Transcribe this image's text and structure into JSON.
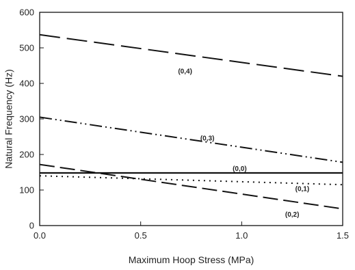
{
  "chart_data": {
    "type": "line",
    "title": "",
    "xlabel": "Maximum Hoop Stress (MPa)",
    "ylabel": "Natural Frequency (Hz)",
    "xlim": [
      0,
      1.5
    ],
    "ylim": [
      0,
      600
    ],
    "x_ticks": [
      "0.0",
      "0.5",
      "1.0",
      "1.5"
    ],
    "y_ticks": [
      "0",
      "100",
      "200",
      "300",
      "400",
      "500",
      "600"
    ],
    "grid": false,
    "legend": "none",
    "series": [
      {
        "label": "(0,4)",
        "style": "long-dash",
        "x": [
          0,
          1.5
        ],
        "y": [
          537,
          420
        ]
      },
      {
        "label": "(0,3)",
        "style": "dash-dot-dot",
        "x": [
          0,
          1.5
        ],
        "y": [
          305,
          178
        ]
      },
      {
        "label": "(0,0)",
        "style": "solid",
        "x": [
          0,
          1.5
        ],
        "y": [
          148,
          148
        ]
      },
      {
        "label": "(0,1)",
        "style": "dotted",
        "x": [
          0,
          1.5
        ],
        "y": [
          140,
          115
        ]
      },
      {
        "label": "(0,2)",
        "style": "medium-dash",
        "x": [
          0,
          1.5
        ],
        "y": [
          172,
          47
        ]
      }
    ],
    "annotations": [
      {
        "text": "(0,4)",
        "x": 0.72,
        "y": 436
      },
      {
        "text": "(0,3)",
        "x": 0.83,
        "y": 247
      },
      {
        "text": "(0,0)",
        "x": 0.99,
        "y": 162
      },
      {
        "text": "(0,1)",
        "x": 1.3,
        "y": 105
      },
      {
        "text": "(0,2)",
        "x": 1.25,
        "y": 33
      }
    ]
  }
}
